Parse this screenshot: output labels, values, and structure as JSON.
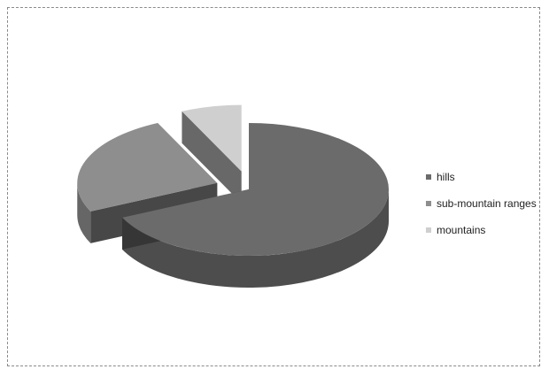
{
  "chart_data": {
    "type": "pie",
    "title": "",
    "categories": [
      "hills",
      "sub-mountain ranges",
      "mountains"
    ],
    "values": [
      68,
      25,
      7
    ],
    "exploded": [
      false,
      true,
      true
    ],
    "style": "3d",
    "legend_position": "right"
  },
  "colors": {
    "hills": "#6b6b6b",
    "sub-mountain ranges": "#8e8e8e",
    "mountains": "#cfcfcf"
  }
}
